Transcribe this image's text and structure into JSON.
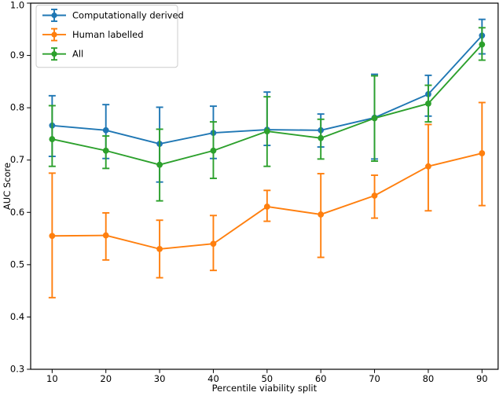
{
  "figure": {
    "background": "#ffffff",
    "frame_color": "#000000"
  },
  "chart_data": {
    "type": "line",
    "title": "",
    "xlabel": "Percentile viability split",
    "ylabel": "AUC Score",
    "xlim": [
      6,
      93
    ],
    "ylim": [
      0.3,
      1.0
    ],
    "xticks": [
      10,
      20,
      30,
      40,
      50,
      60,
      70,
      80,
      90
    ],
    "xticklabels": [
      "10",
      "20",
      "30",
      "40",
      "50",
      "60",
      "70",
      "80",
      "90"
    ],
    "yticks": [
      0.3,
      0.4,
      0.5,
      0.6,
      0.7,
      0.8,
      0.9,
      1.0
    ],
    "yticklabels": [
      "0.3",
      "0.4",
      "0.5",
      "0.6",
      "0.7",
      "0.8",
      "0.9",
      "1.0"
    ],
    "grid": false,
    "legend_position": "upper left",
    "x": [
      10,
      20,
      30,
      40,
      50,
      60,
      70,
      80,
      90
    ],
    "series": [
      {
        "name": "Computationally derived",
        "slug": "computationally-derived",
        "color": "#1f77b4",
        "values": [
          0.766,
          0.757,
          0.731,
          0.752,
          0.758,
          0.757,
          0.781,
          0.826,
          0.938
        ],
        "err_upper": [
          0.823,
          0.806,
          0.801,
          0.803,
          0.83,
          0.788,
          0.864,
          0.862,
          0.969
        ],
        "err_lower": [
          0.707,
          0.703,
          0.658,
          0.703,
          0.728,
          0.725,
          0.702,
          0.784,
          0.903
        ]
      },
      {
        "name": "Human labelled",
        "slug": "human-labelled",
        "color": "#ff7f0e",
        "values": [
          0.555,
          0.556,
          0.53,
          0.54,
          0.611,
          0.596,
          0.632,
          0.688,
          0.713
        ],
        "err_upper": [
          0.675,
          0.599,
          0.585,
          0.594,
          0.642,
          0.674,
          0.671,
          0.768,
          0.81
        ],
        "err_lower": [
          0.437,
          0.509,
          0.475,
          0.489,
          0.583,
          0.514,
          0.589,
          0.603,
          0.613
        ]
      },
      {
        "name": "All",
        "slug": "all",
        "color": "#2ca02c",
        "values": [
          0.74,
          0.718,
          0.691,
          0.718,
          0.755,
          0.742,
          0.78,
          0.808,
          0.921
        ],
        "err_upper": [
          0.804,
          0.746,
          0.759,
          0.773,
          0.821,
          0.778,
          0.861,
          0.843,
          0.953
        ],
        "err_lower": [
          0.688,
          0.684,
          0.622,
          0.665,
          0.688,
          0.702,
          0.698,
          0.773,
          0.891
        ]
      }
    ],
    "legend": {
      "labels": [
        "Computationally derived",
        "Human labelled",
        "All"
      ],
      "border_color": "#cccccc",
      "background": "rgba(255,255,255,0.85)"
    }
  }
}
